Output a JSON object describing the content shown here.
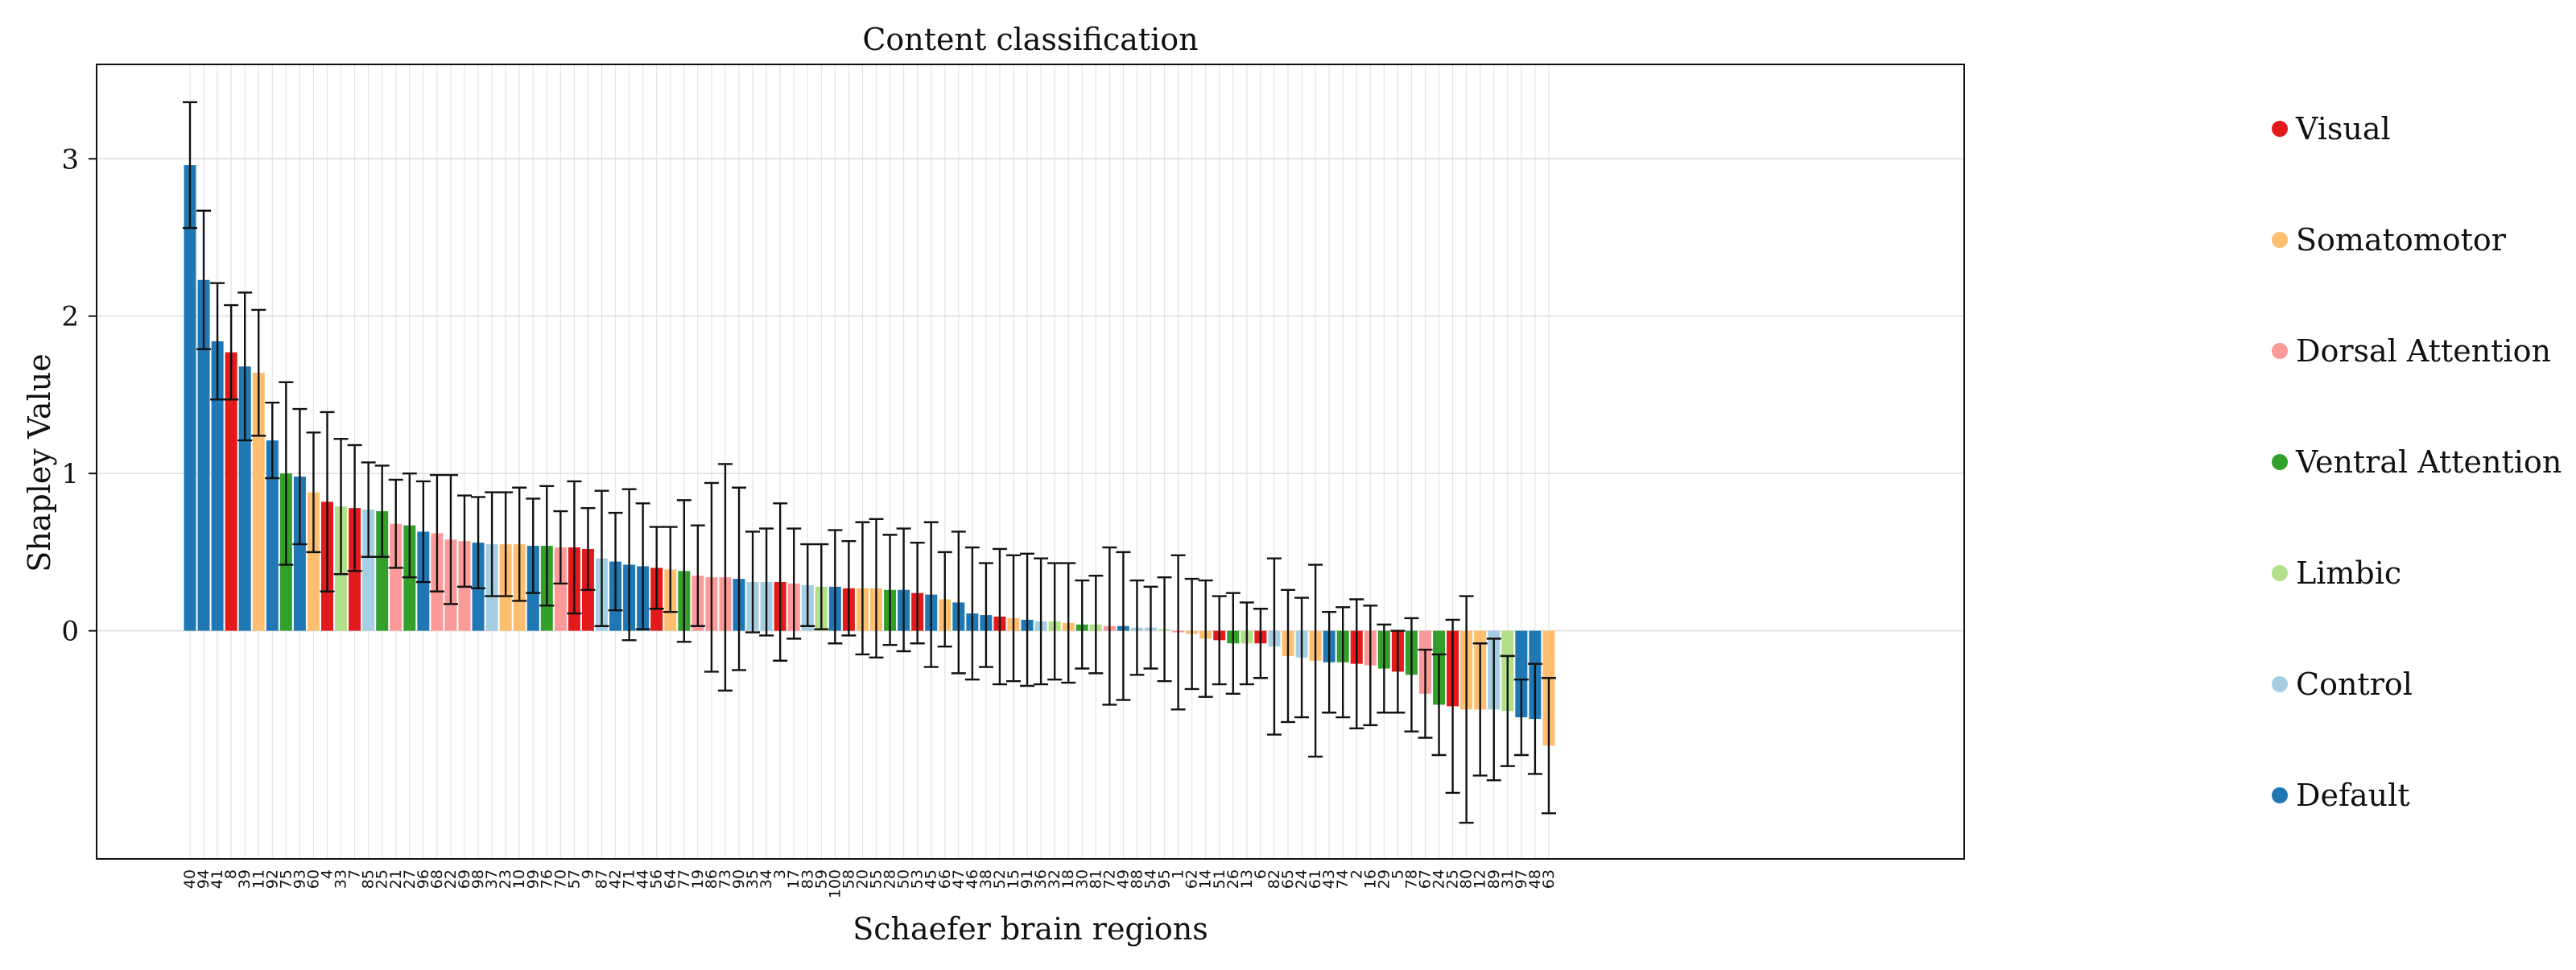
{
  "chart_data": {
    "type": "bar",
    "title": "Content classification",
    "xlabel": "Schaefer brain regions",
    "ylabel": "Shapley Value",
    "ylim": [
      -1.45,
      3.6
    ],
    "yticks": [
      0,
      1,
      2,
      3
    ],
    "grid": true,
    "legend_position": "right",
    "networks": [
      {
        "name": "Visual",
        "color": "#e31a1c"
      },
      {
        "name": "Somatomotor",
        "color": "#fdbf6f"
      },
      {
        "name": "Dorsal Attention",
        "color": "#fb9a99"
      },
      {
        "name": "Ventral Attention",
        "color": "#33a02c"
      },
      {
        "name": "Limbic",
        "color": "#b2df8a"
      },
      {
        "name": "Control",
        "color": "#a6cee3"
      },
      {
        "name": "Default",
        "color": "#1f78b4"
      }
    ],
    "categories": [
      "40",
      "94",
      "41",
      "8",
      "39",
      "11",
      "92",
      "75",
      "93",
      "60",
      "4",
      "33",
      "7",
      "85",
      "25",
      "21",
      "27",
      "96",
      "68",
      "22",
      "69",
      "98",
      "37",
      "23",
      "10",
      "99",
      "76",
      "70",
      "57",
      "9",
      "87",
      "42",
      "71",
      "44",
      "56",
      "64",
      "77",
      "19",
      "86",
      "73",
      "90",
      "35",
      "34",
      "3",
      "17",
      "83",
      "59",
      "100",
      "58",
      "20",
      "55",
      "28",
      "50",
      "53",
      "45",
      "66",
      "47",
      "46",
      "38",
      "52",
      "15",
      "91",
      "36",
      "32",
      "18",
      "30",
      "81",
      "72",
      "49",
      "88",
      "54",
      "95",
      "1",
      "62",
      "14",
      "51",
      "26",
      "13",
      "6",
      "82",
      "65",
      "24",
      "61",
      "43",
      "74",
      "2",
      "16",
      "29",
      "5",
      "78",
      "67",
      "24",
      "25",
      "80",
      "12",
      "89",
      "31",
      "97",
      "48",
      "63"
    ],
    "values": [
      2.96,
      2.23,
      1.84,
      1.77,
      1.68,
      1.64,
      1.21,
      1.0,
      0.98,
      0.88,
      0.82,
      0.79,
      0.78,
      0.77,
      0.76,
      0.68,
      0.67,
      0.63,
      0.62,
      0.58,
      0.57,
      0.56,
      0.55,
      0.55,
      0.55,
      0.54,
      0.54,
      0.53,
      0.53,
      0.52,
      0.46,
      0.44,
      0.42,
      0.41,
      0.4,
      0.39,
      0.38,
      0.35,
      0.34,
      0.34,
      0.33,
      0.31,
      0.31,
      0.31,
      0.3,
      0.29,
      0.28,
      0.28,
      0.27,
      0.27,
      0.27,
      0.26,
      0.26,
      0.24,
      0.23,
      0.2,
      0.18,
      0.11,
      0.1,
      0.09,
      0.08,
      0.07,
      0.06,
      0.06,
      0.05,
      0.04,
      0.04,
      0.03,
      0.03,
      0.02,
      0.02,
      0.01,
      -0.01,
      -0.02,
      -0.05,
      -0.06,
      -0.08,
      -0.08,
      -0.08,
      -0.1,
      -0.16,
      -0.17,
      -0.19,
      -0.2,
      -0.2,
      -0.21,
      -0.22,
      -0.24,
      -0.26,
      -0.28,
      -0.4,
      -0.47,
      -0.48,
      -0.5,
      -0.5,
      -0.5,
      -0.51,
      -0.55,
      -0.56,
      -0.73
    ],
    "errors": [
      0.4,
      0.44,
      0.37,
      0.3,
      0.47,
      0.4,
      0.24,
      0.58,
      0.43,
      0.38,
      0.57,
      0.43,
      0.4,
      0.3,
      0.29,
      0.28,
      0.33,
      0.32,
      0.37,
      0.41,
      0.29,
      0.29,
      0.33,
      0.33,
      0.36,
      0.3,
      0.38,
      0.23,
      0.42,
      0.26,
      0.43,
      0.31,
      0.48,
      0.4,
      0.26,
      0.27,
      0.45,
      0.32,
      0.6,
      0.72,
      0.58,
      0.32,
      0.34,
      0.5,
      0.35,
      0.26,
      0.27,
      0.36,
      0.3,
      0.42,
      0.44,
      0.35,
      0.39,
      0.32,
      0.46,
      0.3,
      0.45,
      0.42,
      0.33,
      0.43,
      0.4,
      0.42,
      0.4,
      0.37,
      0.38,
      0.28,
      0.31,
      0.5,
      0.47,
      0.3,
      0.26,
      0.33,
      0.49,
      0.35,
      0.37,
      0.28,
      0.32,
      0.26,
      0.22,
      0.56,
      0.42,
      0.38,
      0.61,
      0.32,
      0.35,
      0.41,
      0.38,
      0.28,
      0.26,
      0.36,
      0.28,
      0.32,
      0.55,
      0.72,
      0.42,
      0.45,
      0.35,
      0.24,
      0.35,
      0.43
    ],
    "network_index": [
      6,
      6,
      6,
      0,
      6,
      1,
      6,
      3,
      6,
      1,
      0,
      4,
      0,
      5,
      3,
      2,
      3,
      6,
      2,
      2,
      2,
      6,
      5,
      1,
      1,
      6,
      3,
      2,
      0,
      0,
      5,
      6,
      6,
      6,
      0,
      1,
      3,
      2,
      2,
      2,
      6,
      5,
      5,
      0,
      2,
      5,
      4,
      6,
      0,
      1,
      1,
      3,
      6,
      0,
      6,
      1,
      6,
      6,
      6,
      0,
      1,
      6,
      5,
      4,
      1,
      3,
      4,
      2,
      6,
      5,
      5,
      4,
      2,
      1,
      1,
      0,
      3,
      4,
      0,
      5,
      1,
      5,
      1,
      6,
      3,
      0,
      2,
      3,
      0,
      3,
      2,
      3,
      0,
      1,
      1,
      5,
      4,
      6,
      6,
      1
    ]
  }
}
